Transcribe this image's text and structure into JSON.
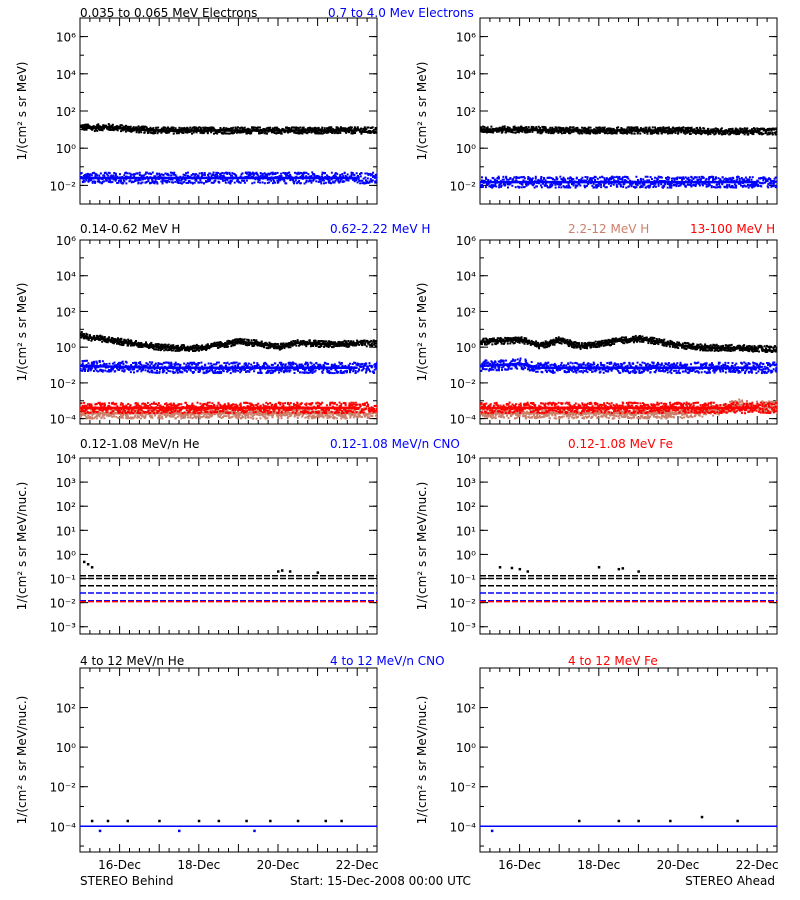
{
  "colors": {
    "black": "#000000",
    "blue": "#0000ff",
    "salmon": "#cd7f6a",
    "red": "#ff0000"
  },
  "footer": {
    "left": "STEREO Behind",
    "center": "Start: 15-Dec-2008 00:00 UTC",
    "right": "STEREO Ahead"
  },
  "chart_data": [
    {
      "type": "scatter",
      "row_title": [
        {
          "text": "0.035 to 0.065 MeV Electrons",
          "color": "black"
        },
        {
          "text": "0.7 to 4.0 Mev Electrons",
          "color": "blue"
        }
      ],
      "ylabel": "1/(cm² s sr MeV)",
      "y_scale": "log",
      "ylim": [
        0.001,
        10000000
      ],
      "yticks": [
        {
          "v": 0.01,
          "label": "10⁻²"
        },
        {
          "v": 1,
          "label": "10⁰"
        },
        {
          "v": 100,
          "label": "10²"
        },
        {
          "v": 10000,
          "label": "10⁴"
        },
        {
          "v": 1000000,
          "label": "10⁶"
        }
      ],
      "panels": [
        {
          "spacecraft": "STEREO Behind",
          "series": [
            {
              "name": "0.035 to 0.065 MeV Electrons",
              "color": "black",
              "x": [
                0,
                0.3,
                0.6,
                1.0,
                1.5,
                2.0,
                2.5,
                3.0,
                3.5,
                4.0,
                4.5,
                5.0,
                5.5,
                6.0,
                6.5,
                7.0
              ],
              "y": [
                14,
                12,
                14,
                12,
                10,
                9,
                9,
                9,
                9,
                9,
                9,
                9,
                9,
                9,
                9,
                9
              ]
            },
            {
              "name": "0.7 to 4.0 Mev Electrons",
              "color": "blue",
              "x": [
                0,
                1,
                2,
                3,
                4,
                5,
                6,
                7
              ],
              "y": [
                0.025,
                0.025,
                0.025,
                0.025,
                0.025,
                0.025,
                0.025,
                0.025
              ]
            }
          ]
        },
        {
          "spacecraft": "STEREO Ahead",
          "series": [
            {
              "name": "0.035 to 0.065 MeV Electrons",
              "color": "black",
              "x": [
                0,
                1,
                2,
                3,
                4,
                5,
                6,
                7
              ],
              "y": [
                10,
                10,
                9,
                9,
                9,
                9,
                8,
                8
              ]
            },
            {
              "name": "0.7 to 4.0 Mev Electrons",
              "color": "blue",
              "x": [
                0,
                1,
                2,
                3,
                4,
                5,
                6,
                7
              ],
              "y": [
                0.015,
                0.015,
                0.015,
                0.015,
                0.015,
                0.015,
                0.015,
                0.015
              ]
            }
          ]
        }
      ]
    },
    {
      "type": "scatter",
      "row_title": [
        {
          "text": "0.14-0.62 MeV H",
          "color": "black"
        },
        {
          "text": "0.62-2.22 MeV H",
          "color": "blue"
        },
        {
          "text": "2.2-12 MeV H",
          "color": "salmon"
        },
        {
          "text": "13-100 MeV H",
          "color": "red"
        }
      ],
      "ylabel": "1/(cm² s sr MeV)",
      "y_scale": "log",
      "ylim": [
        5e-05,
        1000000
      ],
      "yticks": [
        {
          "v": 0.0001,
          "label": "10⁻⁴"
        },
        {
          "v": 0.01,
          "label": "10⁻²"
        },
        {
          "v": 1,
          "label": "10⁰"
        },
        {
          "v": 100,
          "label": "10²"
        },
        {
          "v": 10000,
          "label": "10⁴"
        },
        {
          "v": 1000000,
          "label": "10⁶"
        }
      ],
      "panels": [
        {
          "spacecraft": "STEREO Behind",
          "series": [
            {
              "name": "0.14-0.62 MeV H",
              "color": "black",
              "x": [
                0,
                0.2,
                0.5,
                1.0,
                1.5,
                2.0,
                2.5,
                3.0,
                3.5,
                4.0,
                4.5,
                5.0,
                5.5,
                6.0,
                6.5,
                7.0
              ],
              "y": [
                5,
                3.5,
                3,
                2,
                1.5,
                1,
                0.9,
                0.9,
                1.3,
                2,
                1.6,
                1,
                1.8,
                1.5,
                1.5,
                1.6
              ]
            },
            {
              "name": "0.62-2.22 MeV H",
              "color": "blue",
              "x": [
                0,
                1,
                2,
                3,
                4,
                5,
                6,
                7
              ],
              "y": [
                0.09,
                0.08,
                0.07,
                0.07,
                0.07,
                0.07,
                0.07,
                0.07
              ]
            },
            {
              "name": "2.2-12 MeV H",
              "color": "salmon",
              "x": [
                0,
                1,
                2,
                3,
                4,
                5,
                6,
                7
              ],
              "y": [
                0.0002,
                0.0002,
                0.0002,
                0.0002,
                0.0002,
                0.0002,
                0.0002,
                0.0002
              ]
            },
            {
              "name": "13-100 MeV H",
              "color": "red",
              "x": [
                0,
                1,
                2,
                3,
                4,
                5,
                6,
                7
              ],
              "y": [
                0.0004,
                0.0004,
                0.0004,
                0.0004,
                0.0004,
                0.0004,
                0.0004,
                0.0004
              ]
            }
          ]
        },
        {
          "spacecraft": "STEREO Ahead",
          "series": [
            {
              "name": "0.14-0.62 MeV H",
              "color": "black",
              "x": [
                0,
                0.5,
                1.0,
                1.5,
                2.0,
                2.5,
                3.0,
                3.5,
                4.0,
                4.5,
                5.0,
                5.5,
                6.0,
                6.5,
                7.0
              ],
              "y": [
                2,
                2.2,
                2.6,
                1.2,
                2.5,
                1.1,
                1.5,
                2.3,
                3,
                2,
                1.3,
                1,
                0.9,
                0.9,
                0.8
              ]
            },
            {
              "name": "0.62-2.22 MeV H",
              "color": "blue",
              "x": [
                0,
                0.5,
                1.0,
                1.5,
                2.0,
                3.0,
                4.0,
                5.0,
                6.0,
                7.0
              ],
              "y": [
                0.09,
                0.1,
                0.12,
                0.07,
                0.07,
                0.07,
                0.07,
                0.07,
                0.07,
                0.07
              ]
            },
            {
              "name": "2.2-12 MeV H",
              "color": "salmon",
              "x": [
                0,
                1,
                2,
                3,
                4,
                5,
                6,
                6.5,
                7.0
              ],
              "y": [
                0.0002,
                0.0002,
                0.0002,
                0.0002,
                0.0002,
                0.0002,
                0.0003,
                0.0006,
                0.0005
              ]
            },
            {
              "name": "13-100 MeV H",
              "color": "red",
              "x": [
                0,
                1,
                2,
                3,
                4,
                5,
                6,
                7
              ],
              "y": [
                0.0004,
                0.0004,
                0.0004,
                0.0004,
                0.0004,
                0.0004,
                0.0004,
                0.0004
              ]
            }
          ]
        }
      ]
    },
    {
      "type": "scatter",
      "row_title": [
        {
          "text": "0.12-1.08 MeV/n He",
          "color": "black"
        },
        {
          "text": "0.12-1.08 MeV/n CNO",
          "color": "blue"
        },
        {
          "text": "0.12-1.08 MeV Fe",
          "color": "red"
        }
      ],
      "ylabel": "1/(cm² s sr MeV/nuc.)",
      "y_scale": "log",
      "ylim": [
        0.0005,
        10000
      ],
      "yticks": [
        {
          "v": 0.001,
          "label": "10⁻³"
        },
        {
          "v": 0.01,
          "label": "10⁻²"
        },
        {
          "v": 0.1,
          "label": "10⁻¹"
        },
        {
          "v": 1,
          "label": "10⁰"
        },
        {
          "v": 10,
          "label": "10¹"
        },
        {
          "v": 100,
          "label": "10²"
        },
        {
          "v": 1000,
          "label": "10³"
        },
        {
          "v": 10000,
          "label": "10⁴"
        }
      ],
      "panels": [
        {
          "spacecraft": "STEREO Behind",
          "series": [
            {
              "name": "0.12-1.08 MeV/n He",
              "color": "black",
              "levels": [
                0.13,
                0.1,
                0.05
              ],
              "x": [
                0.1,
                0.2,
                0.3,
                5.0,
                5.1,
                5.3,
                6.0
              ],
              "y": [
                0.5,
                0.4,
                0.3,
                0.2,
                0.22,
                0.2,
                0.18
              ]
            },
            {
              "name": "0.12-1.08 MeV/n CNO",
              "color": "blue",
              "levels": [
                0.025,
                0.012
              ],
              "x": [],
              "y": []
            },
            {
              "name": "0.12-1.08 MeV Fe",
              "color": "red",
              "levels": [
                0.011
              ],
              "x": [],
              "y": []
            }
          ]
        },
        {
          "spacecraft": "STEREO Ahead",
          "series": [
            {
              "name": "0.12-1.08 MeV/n He",
              "color": "black",
              "levels": [
                0.13,
                0.1,
                0.05
              ],
              "x": [
                0.5,
                0.8,
                1.0,
                1.2,
                3.0,
                3.5,
                3.6,
                4.0
              ],
              "y": [
                0.3,
                0.28,
                0.25,
                0.2,
                0.3,
                0.25,
                0.27,
                0.2
              ]
            },
            {
              "name": "0.12-1.08 MeV/n CNO",
              "color": "blue",
              "levels": [
                0.025,
                0.012
              ],
              "x": [],
              "y": []
            },
            {
              "name": "0.12-1.08 MeV Fe",
              "color": "red",
              "levels": [
                0.011
              ],
              "x": [],
              "y": []
            }
          ]
        }
      ]
    },
    {
      "type": "scatter",
      "row_title": [
        {
          "text": "4 to 12 MeV/n He",
          "color": "black"
        },
        {
          "text": "4 to 12 MeV/n CNO",
          "color": "blue"
        },
        {
          "text": "4 to 12 MeV Fe",
          "color": "red"
        }
      ],
      "ylabel": "1/(cm² s sr MeV/nuc.)",
      "y_scale": "log",
      "ylim": [
        5e-06,
        10000
      ],
      "yticks": [
        {
          "v": 0.0001,
          "label": "10⁻⁴"
        },
        {
          "v": 0.01,
          "label": "10⁻²"
        },
        {
          "v": 1,
          "label": "10⁰"
        },
        {
          "v": 100,
          "label": "10²"
        }
      ],
      "panels": [
        {
          "spacecraft": "STEREO Behind",
          "series": [
            {
              "name": "4 to 12 MeV/n He",
              "color": "black",
              "levels": [],
              "x": [
                0.3,
                0.7,
                1.2,
                2.0,
                3.0,
                3.5,
                4.2,
                4.8,
                5.5,
                6.2,
                6.6
              ],
              "y": [
                0.00019,
                0.00019,
                0.00019,
                0.00019,
                0.00019,
                0.00019,
                0.00019,
                0.00019,
                0.00019,
                0.00019,
                0.00019
              ]
            },
            {
              "name": "4 to 12 MeV/n CNO",
              "color": "blue",
              "levels": [
                0.0001
              ],
              "x": [
                0.5,
                2.5,
                4.4
              ],
              "y": [
                6e-05,
                6e-05,
                6e-05
              ]
            },
            {
              "name": "4 to 12 MeV Fe",
              "color": "red",
              "levels": [],
              "x": [],
              "y": []
            }
          ]
        },
        {
          "spacecraft": "STEREO Ahead",
          "series": [
            {
              "name": "4 to 12 MeV/n He",
              "color": "black",
              "levels": [],
              "x": [
                2.5,
                3.5,
                4.0,
                4.8,
                5.6,
                6.5
              ],
              "y": [
                0.00019,
                0.00019,
                0.00019,
                0.00019,
                0.0003,
                0.00019
              ]
            },
            {
              "name": "4 to 12 MeV/n CNO",
              "color": "blue",
              "levels": [
                0.0001
              ],
              "x": [
                0.3
              ],
              "y": [
                6e-05
              ]
            },
            {
              "name": "4 to 12 MeV Fe",
              "color": "red",
              "levels": [],
              "x": [],
              "y": []
            }
          ]
        }
      ]
    }
  ],
  "x_axis": {
    "start_label": "Start: 15-Dec-2008 00:00 UTC",
    "xlim_days": [
      0,
      7.5
    ],
    "ticks": [
      {
        "v": 1,
        "label": "16-Dec"
      },
      {
        "v": 3,
        "label": "18-Dec"
      },
      {
        "v": 5,
        "label": "20-Dec"
      },
      {
        "v": 7,
        "label": "22-Dec"
      }
    ]
  }
}
